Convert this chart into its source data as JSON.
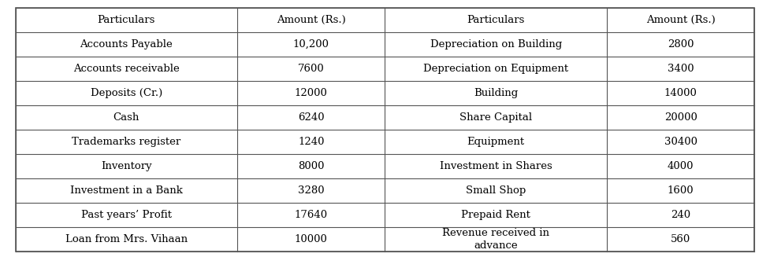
{
  "left_headers": [
    "Particulars",
    "Amount (Rs.)"
  ],
  "right_headers": [
    "Particulars",
    "Amount (Rs.)"
  ],
  "left_rows": [
    [
      "Accounts Payable",
      "10,200"
    ],
    [
      "Accounts receivable",
      "7600"
    ],
    [
      "Deposits (Cr.)",
      "12000"
    ],
    [
      "Cash",
      "6240"
    ],
    [
      "Trademarks register",
      "1240"
    ],
    [
      "Inventory",
      "8000"
    ],
    [
      "Investment in a Bank",
      "3280"
    ],
    [
      "Past years’ Profit",
      "17640"
    ],
    [
      "Loan from Mrs. Vihaan",
      "10000"
    ]
  ],
  "right_rows": [
    [
      "Depreciation on Building",
      "2800"
    ],
    [
      "Depreciation on Equipment",
      "3400"
    ],
    [
      "Building",
      "14000"
    ],
    [
      "Share Capital",
      "20000"
    ],
    [
      "Equipment",
      "30400"
    ],
    [
      "Investment in Shares",
      "4000"
    ],
    [
      "Small Shop",
      "1600"
    ],
    [
      "Prepaid Rent",
      "240"
    ],
    [
      "Revenue received in\nadvance",
      "560"
    ]
  ],
  "bg_color": "#ffffff",
  "line_color": "#555555",
  "text_color": "#000000",
  "font_size": 9.5,
  "header_font_size": 9.5
}
